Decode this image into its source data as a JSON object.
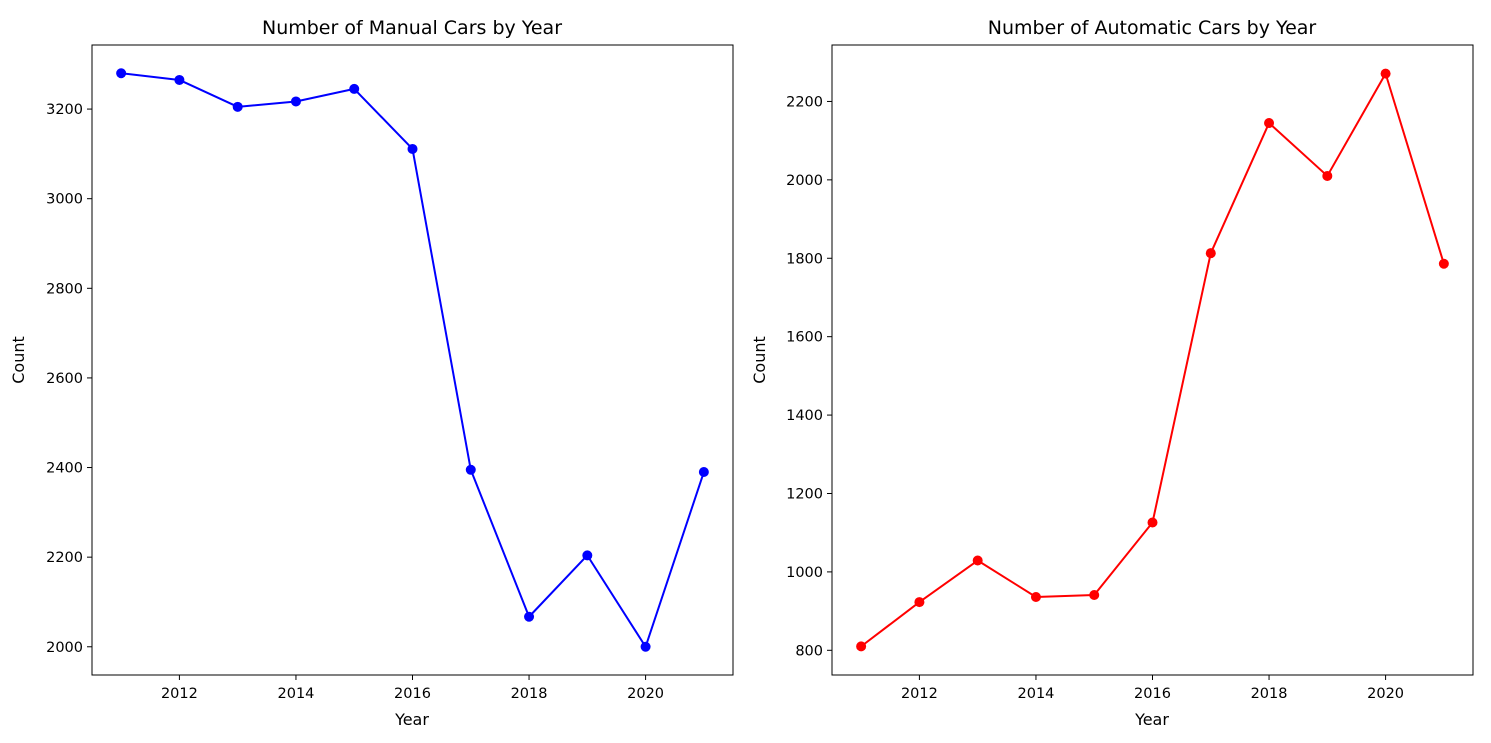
{
  "chart_data": [
    {
      "type": "line",
      "title": "Number of Manual Cars by Year",
      "xlabel": "Year",
      "ylabel": "Count",
      "x": [
        2011,
        2012,
        2013,
        2014,
        2015,
        2016,
        2017,
        2018,
        2019,
        2020,
        2021
      ],
      "series": [
        {
          "values": [
            3280,
            3265,
            3205,
            3217,
            3245,
            3111,
            2395,
            2067,
            2204,
            2000,
            2390
          ],
          "color": "#0000ff",
          "marker": "circle"
        }
      ],
      "xlim": [
        2010.5,
        2021.5
      ],
      "ylim": [
        1937,
        3343
      ],
      "xticks": [
        2012,
        2014,
        2016,
        2018,
        2020
      ],
      "yticks": [
        2000,
        2200,
        2400,
        2600,
        2800,
        3000,
        3200
      ],
      "grid": false,
      "legend": "none"
    },
    {
      "type": "line",
      "title": "Number of Automatic Cars by Year",
      "xlabel": "Year",
      "ylabel": "Count",
      "x": [
        2011,
        2012,
        2013,
        2014,
        2015,
        2016,
        2017,
        2018,
        2019,
        2020,
        2021
      ],
      "series": [
        {
          "values": [
            810,
            923,
            1029,
            936,
            941,
            1126,
            1813,
            2145,
            2010,
            2271,
            1786
          ],
          "color": "#ff0000",
          "marker": "circle"
        }
      ],
      "xlim": [
        2010.5,
        2021.5
      ],
      "ylim": [
        737,
        2344
      ],
      "xticks": [
        2012,
        2014,
        2016,
        2018,
        2020
      ],
      "yticks": [
        800,
        1000,
        1200,
        1400,
        1600,
        1800,
        2000,
        2200
      ],
      "grid": false,
      "legend": "none"
    }
  ]
}
